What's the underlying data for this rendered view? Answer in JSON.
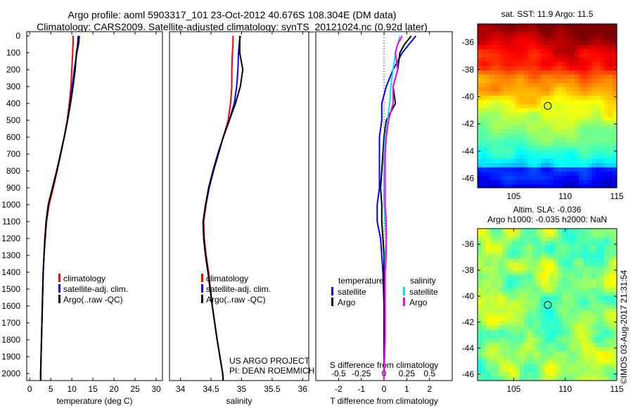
{
  "header": {
    "title_line1": "Argo profile: aoml 5903317_101 23-Oct-2012 40.676S 108.304E (DM data)",
    "title_line2": "Climatology: CARS2009. Satellite-adjusted climatology: synTS_20121024.nc (0.92d later)"
  },
  "colors": {
    "climatology": "#ff0000",
    "satellite": "#0000ff",
    "argo": "#000000",
    "sal_satellite": "#00e5e5",
    "sal_argo": "#ff00ff"
  },
  "chart_data": [
    {
      "type": "line",
      "id": "temperature",
      "xlabel": "temperature (deg C)",
      "xlim": [
        -0.7,
        31.5
      ],
      "ylim": [
        2042,
        0
      ],
      "xticks": [
        0,
        5,
        10,
        15,
        20,
        25,
        30
      ],
      "yticks": [
        0,
        100,
        200,
        300,
        400,
        500,
        600,
        700,
        800,
        900,
        1000,
        1100,
        1200,
        1300,
        1400,
        1500,
        1600,
        1700,
        1800,
        1900,
        2000
      ],
      "depth": [
        0,
        50,
        100,
        200,
        300,
        400,
        500,
        600,
        700,
        800,
        900,
        1000,
        1100,
        1200,
        1300,
        1400,
        1600,
        1800,
        2000,
        2042
      ],
      "legend": [
        "climatology",
        "satellite-adj. clim.",
        "Argo(..raw -QC)"
      ],
      "series": [
        {
          "name": "climatology",
          "color": "#ff0000",
          "values": [
            10.3,
            10.3,
            10.2,
            10.0,
            9.8,
            9.4,
            8.9,
            8.2,
            7.4,
            6.5,
            5.6,
            4.6,
            4.0,
            3.7,
            3.4,
            3.2,
            3.0,
            2.8,
            2.6,
            2.6
          ]
        },
        {
          "name": "satellite-adj. clim.",
          "color": "#0000ff",
          "values": [
            11.8,
            11.6,
            11.2,
            10.6,
            10.1,
            9.6,
            9.0,
            8.2,
            7.3,
            6.4,
            5.4,
            4.4,
            3.9,
            3.6,
            3.4,
            3.2,
            3.0,
            2.8,
            2.6,
            2.6
          ]
        },
        {
          "name": "Argo(..raw -QC)",
          "color": "#000000",
          "values": [
            11.5,
            11.4,
            11.1,
            10.8,
            10.3,
            9.7,
            9.0,
            8.2,
            7.3,
            6.4,
            5.4,
            4.4,
            3.9,
            3.6,
            3.4,
            3.2,
            3.0,
            2.8,
            2.6,
            2.6
          ]
        }
      ]
    },
    {
      "type": "line",
      "id": "salinity",
      "xlabel": "salinity",
      "xlim": [
        33.82,
        36.1
      ],
      "ylim": [
        2042,
        0
      ],
      "xticks": [
        34,
        34.5,
        35,
        35.5,
        36
      ],
      "depth": [
        0,
        50,
        100,
        200,
        300,
        400,
        500,
        600,
        700,
        800,
        900,
        1000,
        1100,
        1200,
        1300,
        1400,
        1600,
        1800,
        2000,
        2042
      ],
      "legend": [
        "climatology",
        "satellite-adj. clim.",
        "Argo(..raw -QC)"
      ],
      "series": [
        {
          "name": "climatology",
          "color": "#ff0000",
          "values": [
            34.86,
            34.86,
            34.85,
            34.84,
            34.84,
            34.82,
            34.78,
            34.7,
            34.62,
            34.54,
            34.47,
            34.42,
            34.38,
            34.39,
            34.42,
            34.46,
            34.52,
            34.6,
            34.69,
            34.7
          ]
        },
        {
          "name": "satellite-adj. clim.",
          "color": "#0000ff",
          "values": [
            34.98,
            34.96,
            34.95,
            34.94,
            34.92,
            34.88,
            34.8,
            34.7,
            34.62,
            34.54,
            34.47,
            34.41,
            34.37,
            34.38,
            34.41,
            34.45,
            34.52,
            34.6,
            34.69,
            34.7
          ]
        },
        {
          "name": "Argo(..raw -QC)",
          "color": "#000000",
          "values": [
            34.97,
            34.97,
            34.97,
            35.02,
            34.98,
            34.9,
            34.8,
            34.7,
            34.61,
            34.53,
            34.46,
            34.41,
            34.37,
            34.38,
            34.41,
            34.45,
            34.52,
            34.6,
            34.69,
            34.7
          ]
        }
      ],
      "annotation": [
        "US ARGO PROJECT",
        "PI: DEAN ROEMMICH"
      ]
    },
    {
      "type": "line",
      "id": "difference",
      "xlabel": "T difference from climatology",
      "xlim": [
        -3.0,
        3.0
      ],
      "ylim": [
        2042,
        0
      ],
      "xticks": [
        -2,
        -1,
        0,
        1,
        2
      ],
      "top_xlabel": "S difference from climatology",
      "top_xticks": [
        {
          "label": "-0.5",
          "t": -2
        },
        {
          "label": "-0.25",
          "t": -1
        },
        {
          "label": "0",
          "t": 0
        },
        {
          "label": "0.25",
          "t": 1
        },
        {
          "label": "0.5",
          "t": 2
        }
      ],
      "depth": [
        0,
        50,
        100,
        200,
        300,
        400,
        500,
        600,
        700,
        800,
        900,
        1000,
        1100,
        1200,
        1300,
        1400,
        1600,
        1800,
        2000,
        2042
      ],
      "legend": {
        "temperature_header": "temperature",
        "salinity_header": "salinity",
        "items": [
          "satellite",
          "Argo",
          "satellite",
          "Argo"
        ]
      },
      "series": [
        {
          "name": "T satellite",
          "color": "#0000ff",
          "values": [
            1.4,
            1.1,
            0.8,
            0.4,
            0.1,
            -0.1,
            -0.1,
            -0.2,
            -0.2,
            -0.2,
            -0.2,
            -0.3,
            -0.3,
            -0.15,
            -0.1,
            -0.05,
            0,
            0,
            0,
            0
          ]
        },
        {
          "name": "T Argo",
          "color": "#000000",
          "values": [
            1.2,
            0.9,
            0.7,
            0.6,
            0.4,
            0.5,
            0.1,
            0.0,
            -0.05,
            -0.1,
            -0.15,
            -0.1,
            -0.1,
            -0.05,
            0,
            0,
            0,
            0,
            0,
            0
          ]
        },
        {
          "name": "S satellite",
          "color": "#00e5e5",
          "values": [
            0.7,
            0.6,
            0.5,
            0.4,
            0.3,
            0.25,
            0.15,
            0.05,
            0.0,
            0.0,
            0.0,
            0.0,
            0.05,
            0.1,
            0.05,
            0.05,
            0.05,
            0.05,
            0.0,
            0.0
          ]
        },
        {
          "name": "S Argo",
          "color": "#ff00ff",
          "values": [
            0.8,
            0.6,
            0.5,
            0.6,
            0.4,
            0.4,
            0.2,
            0.1,
            0.05,
            0.05,
            0.05,
            0.05,
            0.1,
            0.1,
            0.1,
            0.05,
            0.05,
            0.05,
            0.0,
            0.0
          ]
        }
      ]
    }
  ],
  "maps": [
    {
      "title": "sat. SST: 11.9 Argo: 11.5",
      "xticks": [
        105,
        110,
        115
      ],
      "yticks": [
        -36,
        -38,
        -40,
        -42,
        -44,
        -46
      ],
      "lon_range": [
        101.5,
        115
      ],
      "lat_range": [
        -46.7,
        -34.65
      ],
      "marker": {
        "lon": 108.304,
        "lat": -40.676
      },
      "field": "sst"
    },
    {
      "title_line1": "Altim. SLA: -0.036",
      "title_line2": "Argo h1000: -0.035 h2000: NaN",
      "xticks": [
        105,
        110,
        115
      ],
      "yticks": [
        -36,
        -38,
        -40,
        -42,
        -44,
        -46
      ],
      "lon_range": [
        101.5,
        115
      ],
      "lat_range": [
        -46.5,
        -34.8
      ],
      "marker": {
        "lon": 108.304,
        "lat": -40.676
      },
      "field": "sla"
    }
  ],
  "footer": {
    "timestamp": "©IMOS 03-Aug-2017 21:31:54"
  }
}
